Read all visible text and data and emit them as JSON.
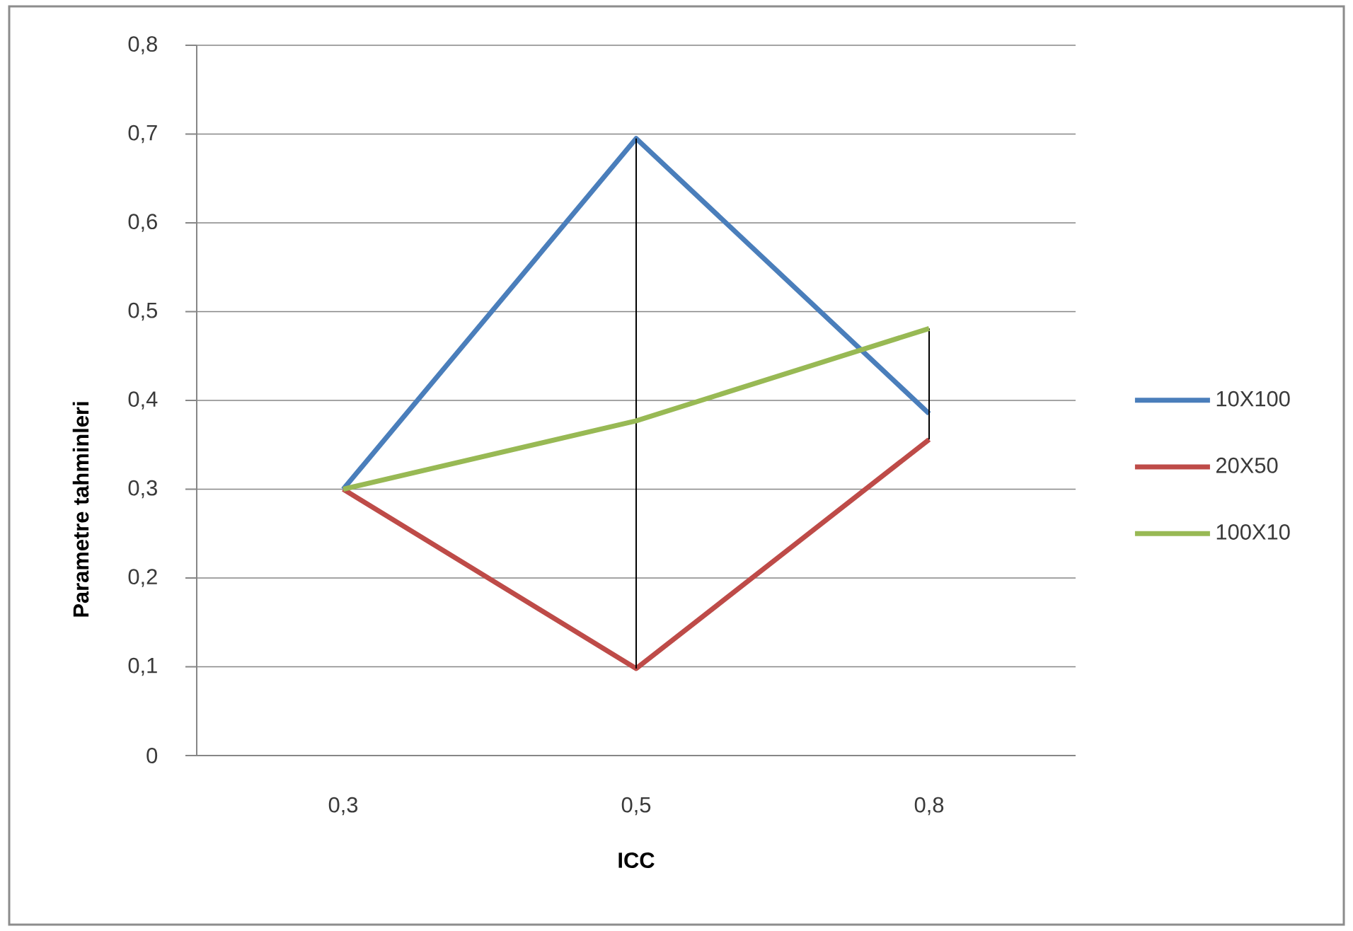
{
  "chart_data": {
    "type": "line",
    "xlabel": "ICC",
    "ylabel": "Parametre tahminleri",
    "categories": [
      "0,3",
      "0,5",
      "0,8"
    ],
    "series": [
      {
        "name": "10X100",
        "color": "#4a7ebb",
        "values": [
          0.3,
          0.695,
          0.385
        ]
      },
      {
        "name": "20X50",
        "color": "#be4b48",
        "values": [
          0.3,
          0.098,
          0.356
        ],
        "errors": [
          null,
          [
            0.098,
            0.695
          ],
          [
            0.356,
            0.481
          ]
        ]
      },
      {
        "name": "100X10",
        "color": "#98b954",
        "values": [
          0.3,
          0.377,
          0.481
        ]
      }
    ],
    "ylim": [
      0,
      0.8
    ],
    "yticks": [
      0,
      {
        "value": 0.1,
        "label": "0,1"
      },
      {
        "value": 0.2,
        "label": "0,2"
      },
      {
        "value": 0.3,
        "label": "0,3"
      },
      {
        "value": 0.4,
        "label": "0,4"
      },
      {
        "value": 0.5,
        "label": "0,5"
      },
      {
        "value": 0.6,
        "label": "0,6"
      },
      {
        "value": 0.7,
        "label": "0,7"
      },
      {
        "value": 0.8,
        "label": "0,8"
      }
    ],
    "grid": "y",
    "legend": "right"
  }
}
